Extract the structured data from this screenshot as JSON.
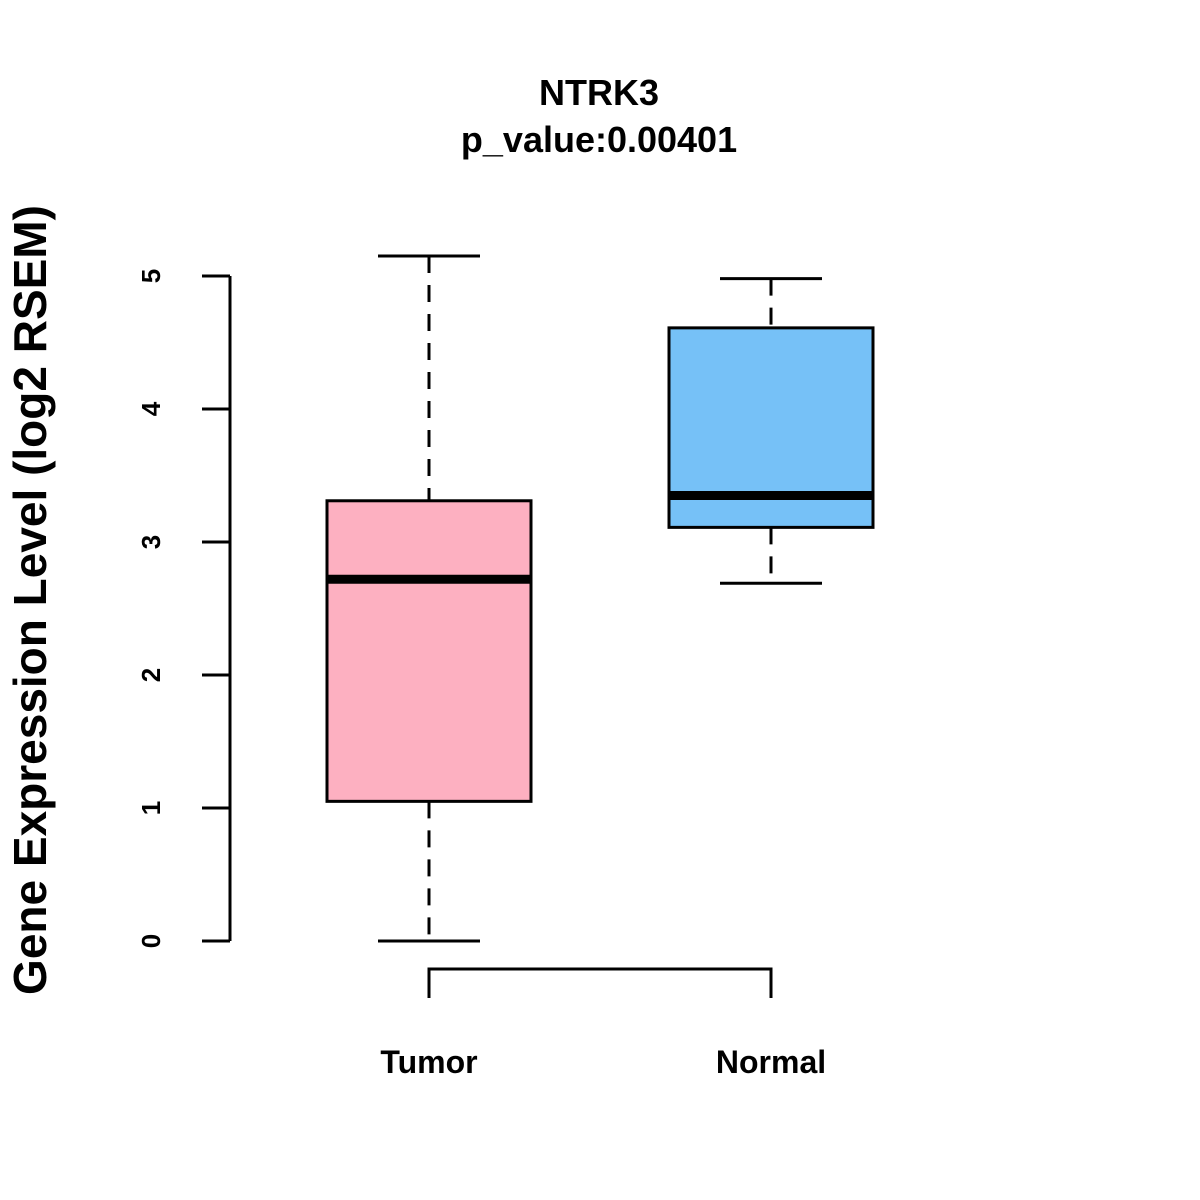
{
  "chart_data": {
    "type": "boxplot",
    "title": "NTRK3",
    "subtitle": "p_value:0.00401",
    "xlabel": "",
    "ylabel": "Gene Expression Level (log2 RSEM)",
    "ylim": [
      0,
      5
    ],
    "yticks": [
      "0",
      "1",
      "2",
      "3",
      "4",
      "5"
    ],
    "categories": [
      "Tumor",
      "Normal"
    ],
    "groups": [
      {
        "name": "Tumor",
        "min": 0.0,
        "q1": 1.05,
        "median": 2.72,
        "q3": 3.31,
        "max": 5.15,
        "color": "#FDB0C1"
      },
      {
        "name": "Normal",
        "min": 2.69,
        "q1": 3.11,
        "median": 3.35,
        "q3": 4.61,
        "max": 4.98,
        "color": "#76C1F7"
      }
    ]
  }
}
